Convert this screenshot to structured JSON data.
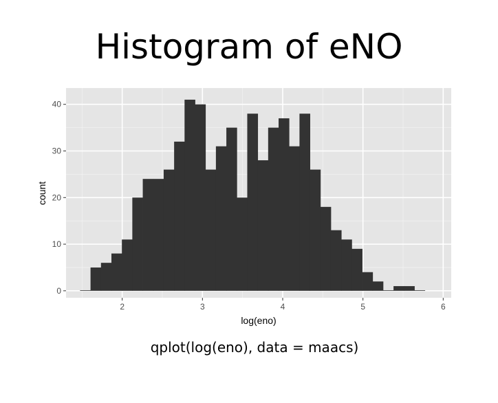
{
  "title": "Histogram of eNO",
  "caption": "qplot(log(eno), data = maacs)",
  "chart_data": {
    "type": "bar",
    "subtype": "histogram",
    "xlabel": "log(eno)",
    "ylabel": "count",
    "xlim": [
      1.3,
      6.1
    ],
    "ylim": [
      -1.5,
      43.5
    ],
    "xticks": [
      2,
      3,
      4,
      5,
      6
    ],
    "yticks": [
      0,
      10,
      20,
      30,
      40
    ],
    "grid": true,
    "panel_color": "#e5e5e5",
    "bar_color": "#333333",
    "bin_start": 1.475,
    "bin_width": 0.1302,
    "values": [
      0,
      5,
      6,
      8,
      11,
      20,
      24,
      24,
      26,
      32,
      41,
      40,
      26,
      31,
      35,
      20,
      38,
      28,
      35,
      37,
      31,
      38,
      26,
      18,
      13,
      11,
      9,
      4,
      2,
      0,
      1,
      1,
      0
    ]
  }
}
